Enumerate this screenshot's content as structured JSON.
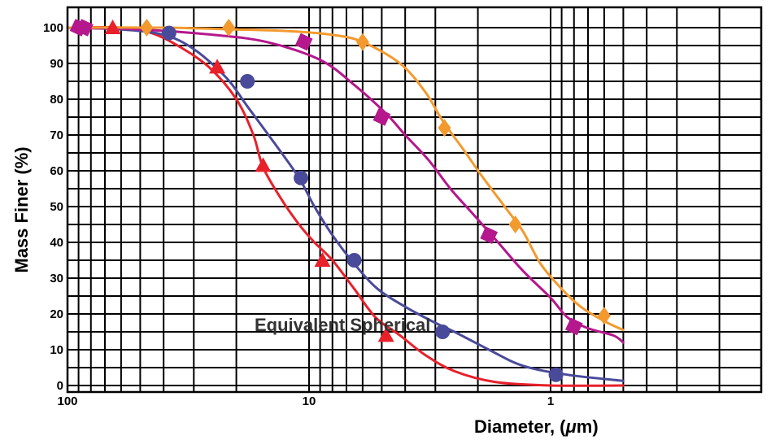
{
  "chart_data": {
    "type": "line",
    "xlabel_prefix": "Diameter, (",
    "xlabel_unit_symbol": "μ",
    "xlabel_unit_rest": "m)",
    "ylabel": "Mass Finer (%)",
    "annotation": "Equivalent Spherical",
    "x_scale": "log",
    "x_reversed": true,
    "xlim": [
      100,
      0.1
    ],
    "ylim": [
      0,
      100
    ],
    "x_ticks": [
      {
        "value": 100,
        "label": "100"
      },
      {
        "value": 10,
        "label": "10"
      },
      {
        "value": 1,
        "label": "1"
      }
    ],
    "y_ticks": [
      0,
      10,
      20,
      30,
      40,
      50,
      60,
      70,
      80,
      90,
      100
    ],
    "grid": true,
    "series": [
      {
        "color": "#e8202a",
        "marker": "triangle",
        "curve": [
          [
            100,
            100
          ],
          [
            60,
            100
          ],
          [
            45,
            98.5
          ],
          [
            35,
            95
          ],
          [
            26,
            89
          ],
          [
            20,
            80
          ],
          [
            17,
            70
          ],
          [
            15.5,
            61
          ],
          [
            13,
            52
          ],
          [
            11,
            45
          ],
          [
            9.5,
            40
          ],
          [
            8,
            35
          ],
          [
            6.5,
            27
          ],
          [
            5.3,
            19
          ],
          [
            4.2,
            14
          ],
          [
            3.3,
            8.5
          ],
          [
            2.5,
            4
          ],
          [
            1.7,
            1
          ],
          [
            1.0,
            0
          ],
          [
            0.5,
            0
          ]
        ],
        "markers": [
          [
            65,
            100
          ],
          [
            24,
            89
          ],
          [
            15.5,
            61.5
          ],
          [
            8.8,
            35
          ],
          [
            4.8,
            14
          ]
        ]
      },
      {
        "color": "#4a4a9a",
        "marker": "circle",
        "curve": [
          [
            100,
            100
          ],
          [
            60,
            99.5
          ],
          [
            40,
            98
          ],
          [
            30,
            94
          ],
          [
            22,
            86
          ],
          [
            18,
            78
          ],
          [
            14,
            68
          ],
          [
            11,
            58
          ],
          [
            9.5,
            50
          ],
          [
            8,
            42
          ],
          [
            6.5,
            34
          ],
          [
            5.2,
            27
          ],
          [
            4,
            22
          ],
          [
            3,
            17.5
          ],
          [
            2.5,
            15
          ],
          [
            1.8,
            10
          ],
          [
            1.3,
            5.5
          ],
          [
            0.85,
            3
          ],
          [
            0.5,
            1.3
          ]
        ],
        "markers": [
          [
            38,
            98.5
          ],
          [
            18,
            85
          ],
          [
            10.8,
            58
          ],
          [
            6.5,
            35
          ],
          [
            2.8,
            15
          ],
          [
            0.95,
            3
          ]
        ]
      },
      {
        "color": "#b5178c",
        "marker": "square",
        "curve": [
          [
            100,
            100
          ],
          [
            50,
            99.5
          ],
          [
            25,
            98
          ],
          [
            15,
            96
          ],
          [
            9,
            91
          ],
          [
            6.5,
            84
          ],
          [
            4.8,
            76
          ],
          [
            4,
            70
          ],
          [
            3.2,
            63
          ],
          [
            2.6,
            55
          ],
          [
            2.1,
            48
          ],
          [
            1.65,
            40
          ],
          [
            1.3,
            32
          ],
          [
            1.0,
            24.5
          ],
          [
            0.85,
            19
          ],
          [
            0.7,
            16
          ],
          [
            0.55,
            14
          ],
          [
            0.5,
            12
          ]
        ],
        "markers": [
          [
            90,
            100
          ],
          [
            85,
            100
          ],
          [
            10.5,
            96
          ],
          [
            5.0,
            75
          ],
          [
            1.8,
            42
          ],
          [
            0.8,
            16.5
          ]
        ]
      },
      {
        "color": "#f39a2e",
        "marker": "diamond",
        "curve": [
          [
            100,
            100
          ],
          [
            40,
            100
          ],
          [
            20,
            99.5
          ],
          [
            12,
            99
          ],
          [
            8,
            98
          ],
          [
            6,
            96
          ],
          [
            4.2,
            90
          ],
          [
            3.3,
            82
          ],
          [
            2.8,
            74
          ],
          [
            2.3,
            66
          ],
          [
            1.9,
            58
          ],
          [
            1.55,
            50
          ],
          [
            1.3,
            43
          ],
          [
            1.1,
            34
          ],
          [
            0.9,
            27
          ],
          [
            0.75,
            22
          ],
          [
            0.6,
            18
          ],
          [
            0.5,
            15.5
          ]
        ],
        "markers": [
          [
            47,
            100
          ],
          [
            21.5,
            100
          ],
          [
            6,
            96
          ],
          [
            2.75,
            72
          ],
          [
            1.4,
            45
          ],
          [
            0.6,
            19.5
          ]
        ]
      }
    ]
  }
}
